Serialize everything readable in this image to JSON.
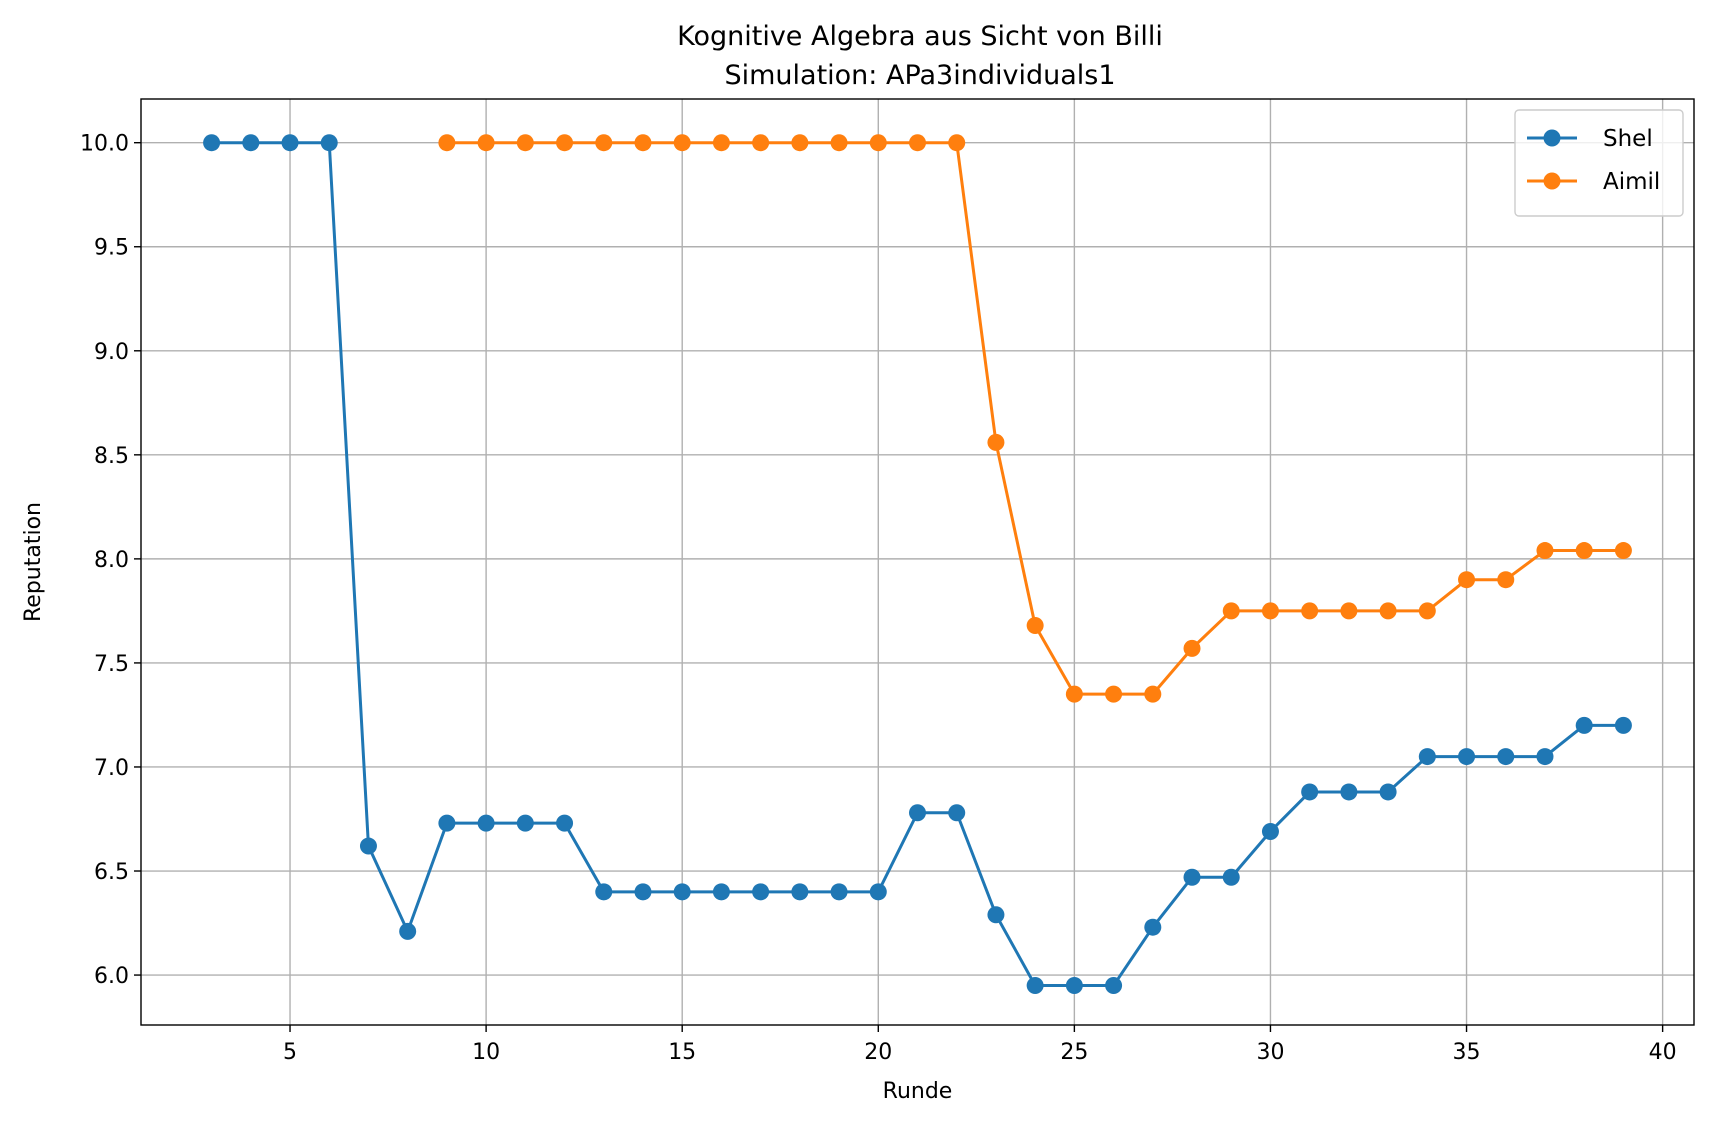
{
  "chart_data": {
    "type": "line",
    "title": "Kognitive Algebra aus Sicht von Billi",
    "subtitle": "Simulation: APa3individuals1",
    "xlabel": "Runde",
    "ylabel": "Reputation",
    "xlim": [
      1.2,
      40.8
    ],
    "ylim": [
      5.76,
      10.21
    ],
    "xticks": [
      5,
      10,
      15,
      20,
      25,
      30,
      35,
      40
    ],
    "xtick_labels": [
      "5",
      "10",
      "15",
      "20",
      "25",
      "30",
      "35",
      "40"
    ],
    "yticks": [
      6.0,
      6.5,
      7.0,
      7.5,
      8.0,
      8.5,
      9.0,
      9.5,
      10.0
    ],
    "ytick_labels": [
      "6.0",
      "6.5",
      "7.0",
      "7.5",
      "8.0",
      "8.5",
      "9.0",
      "9.5",
      "10.0"
    ],
    "grid": true,
    "legend_position": "top-right",
    "series": [
      {
        "name": "Shel",
        "color": "#1f77b4",
        "x": [
          3,
          4,
          5,
          6,
          7,
          8,
          9,
          10,
          11,
          12,
          13,
          14,
          15,
          16,
          17,
          18,
          19,
          20,
          21,
          22,
          23,
          24,
          25,
          26,
          27,
          28,
          29,
          30,
          31,
          32,
          33,
          34,
          35,
          36,
          37,
          38,
          39
        ],
        "values": [
          10.0,
          10.0,
          10.0,
          10.0,
          6.62,
          6.21,
          6.73,
          6.73,
          6.73,
          6.73,
          6.4,
          6.4,
          6.4,
          6.4,
          6.4,
          6.4,
          6.4,
          6.4,
          6.78,
          6.78,
          6.29,
          5.95,
          5.95,
          5.95,
          6.23,
          6.47,
          6.47,
          6.69,
          6.88,
          6.88,
          6.88,
          7.05,
          7.05,
          7.05,
          7.05,
          7.2,
          7.2
        ]
      },
      {
        "name": "Aimil",
        "color": "#ff7f0e",
        "x": [
          9,
          10,
          11,
          12,
          13,
          14,
          15,
          16,
          17,
          18,
          19,
          20,
          21,
          22,
          23,
          24,
          25,
          26,
          27,
          28,
          29,
          30,
          31,
          32,
          33,
          34,
          35,
          36,
          37,
          38,
          39
        ],
        "values": [
          10.0,
          10.0,
          10.0,
          10.0,
          10.0,
          10.0,
          10.0,
          10.0,
          10.0,
          10.0,
          10.0,
          10.0,
          10.0,
          10.0,
          8.56,
          7.68,
          7.35,
          7.35,
          7.35,
          7.57,
          7.75,
          7.75,
          7.75,
          7.75,
          7.75,
          7.75,
          7.9,
          7.9,
          8.04,
          8.04,
          8.04
        ]
      }
    ]
  }
}
